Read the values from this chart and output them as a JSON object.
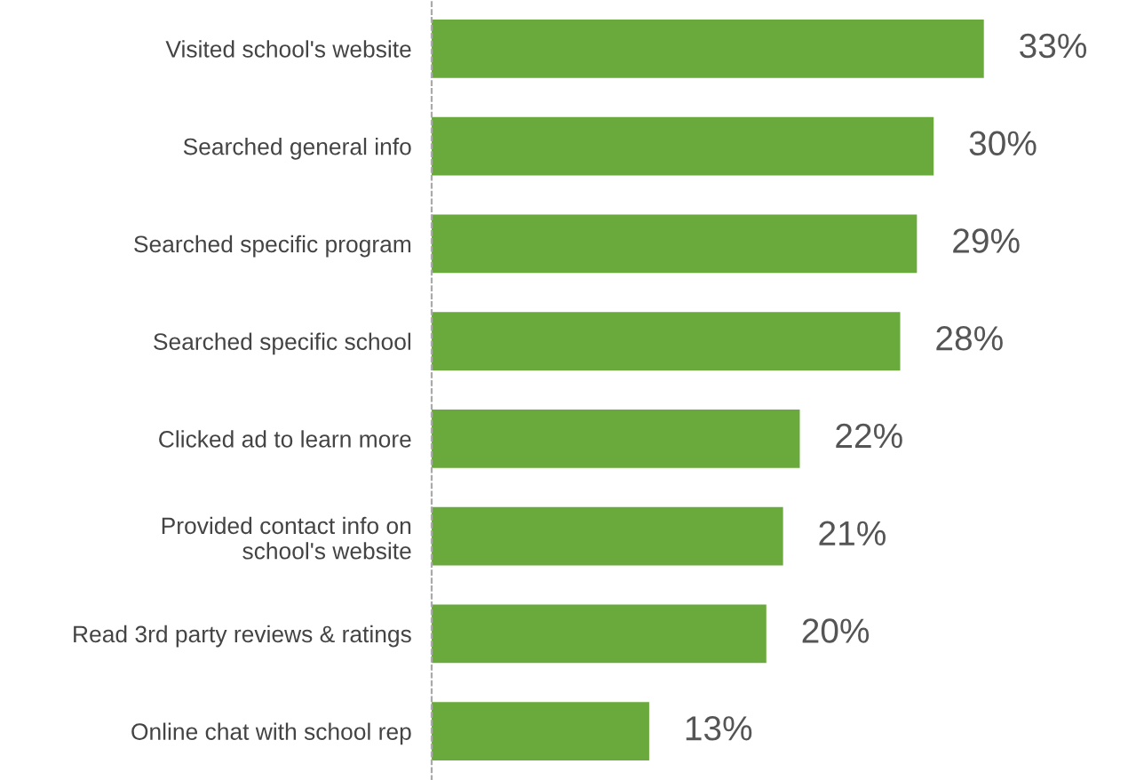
{
  "chart_data": {
    "type": "bar",
    "orientation": "horizontal",
    "categories": [
      "Visited school's website",
      "Searched general info",
      "Searched specific program",
      "Searched specific school",
      "Clicked ad to learn more",
      "Provided contact info on\nschool's website",
      "Read 3rd party reviews & ratings",
      "Online chat with school rep"
    ],
    "values": [
      33,
      30,
      29,
      28,
      22,
      21,
      20,
      13
    ],
    "value_labels": [
      "33%",
      "30%",
      "29%",
      "28%",
      "22%",
      "21%",
      "20%",
      "13%"
    ],
    "color": "#6aaa3c",
    "grid": false,
    "legend": false
  }
}
